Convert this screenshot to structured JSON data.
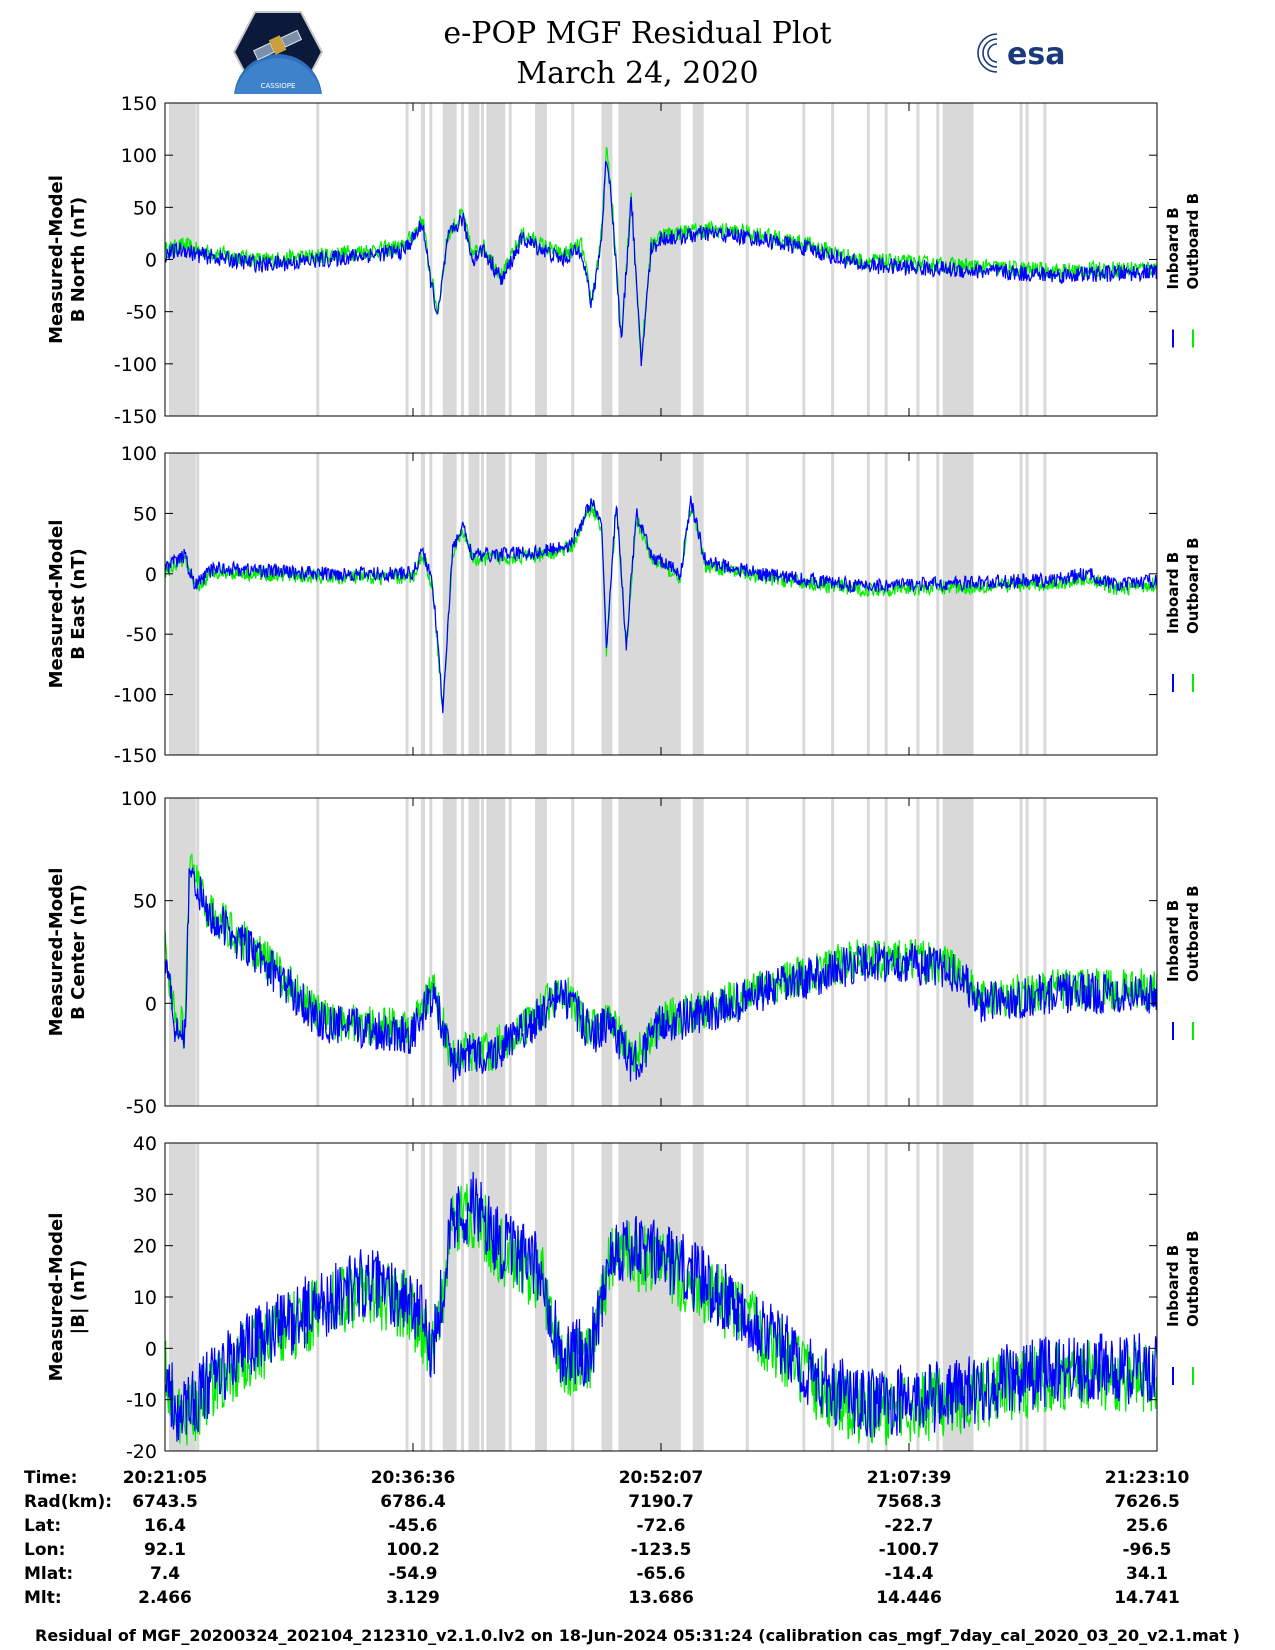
{
  "title": [
    "e-POP MGF Residual Plot",
    "March 24, 2020"
  ],
  "logos": {
    "left": "cassiope-logo",
    "left_text": "CASSIOPE",
    "right": "esa-logo",
    "right_text": "esa"
  },
  "colors": {
    "inboard": "#0000ff",
    "outboard": "#00ee00",
    "gap": "#d9d9d9"
  },
  "chart_data": [
    {
      "type": "line",
      "ylabel": [
        "Measured-Model",
        "B North (nT)"
      ],
      "ylim": [
        -150,
        150
      ],
      "yticks": [
        "150",
        "100",
        "50",
        "0",
        "-50",
        "-100",
        "-150"
      ],
      "series": [
        {
          "name": "Inboard B"
        },
        {
          "name": "Outboard B"
        }
      ]
    },
    {
      "type": "line",
      "ylabel": [
        "Measured-Model",
        "B East (nT)"
      ],
      "ylim": [
        -150,
        100
      ],
      "yticks": [
        "100",
        "50",
        "0",
        "-50",
        "-100",
        "-150"
      ],
      "series": [
        {
          "name": "Inboard B"
        },
        {
          "name": "Outboard B"
        }
      ]
    },
    {
      "type": "line",
      "ylabel": [
        "Measured-Model",
        "B Center (nT)"
      ],
      "ylim": [
        -50,
        100
      ],
      "yticks": [
        "100",
        "50",
        "0",
        "-50"
      ],
      "series": [
        {
          "name": "Inboard B"
        },
        {
          "name": "Outboard B"
        }
      ]
    },
    {
      "type": "line",
      "ylabel": [
        "Measured-Model",
        "|B| (nT)"
      ],
      "ylim": [
        -20,
        40
      ],
      "yticks": [
        "40",
        "30",
        "20",
        "10",
        "0",
        "-10",
        "-20"
      ],
      "series": [
        {
          "name": "Inboard B"
        },
        {
          "name": "Outboard B"
        }
      ]
    }
  ],
  "x_axis": {
    "start": "20:21:05",
    "end": "21:23:10",
    "grid": "off"
  },
  "table": {
    "row_labels": [
      "Time:",
      "Rad(km):",
      "Lat:",
      "Lon:",
      "Mlat:",
      "Mlt:"
    ],
    "columns": [
      [
        "20:21:05",
        "6743.5",
        "16.4",
        "92.1",
        "7.4",
        "2.466"
      ],
      [
        "20:36:36",
        "6786.4",
        "-45.6",
        "100.2",
        "-54.9",
        "3.129"
      ],
      [
        "20:52:07",
        "7190.7",
        "-72.6",
        "-123.5",
        "-65.6",
        "13.686"
      ],
      [
        "21:07:39",
        "7568.3",
        "-22.7",
        "-100.7",
        "-14.4",
        "14.446"
      ],
      [
        "21:23:10",
        "7626.5",
        "25.6",
        "-96.5",
        "34.1",
        "14.741"
      ]
    ]
  },
  "footer": "Residual of MGF_20200324_202104_212310_v2.1.0.lv2 on 18-Jun-2024 05:31:24 (calibration cas_mgf_7day_cal_2020_03_20_v2.1.mat )"
}
